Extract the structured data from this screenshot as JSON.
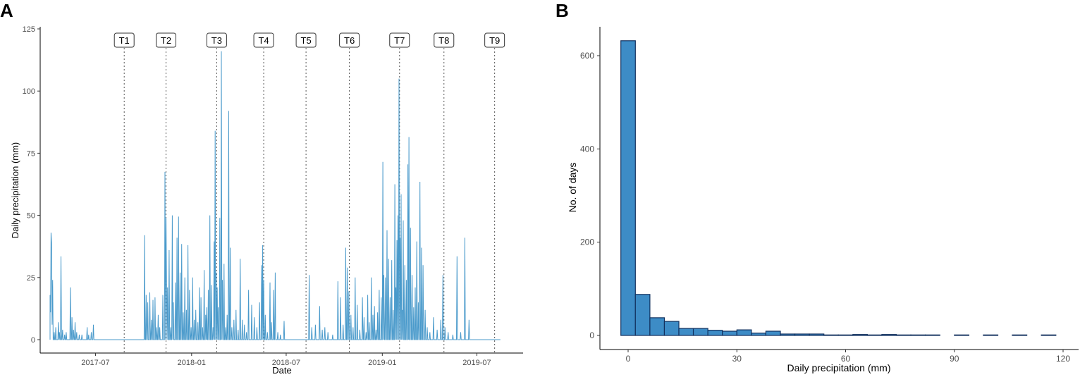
{
  "chart_data": [
    {
      "panel": "A",
      "type": "line",
      "title": "",
      "xlabel": "Date",
      "ylabel": "Daily precipitation (mm)",
      "ylim": [
        0,
        125
      ],
      "yticks": [
        0,
        25,
        50,
        75,
        100,
        125
      ],
      "xlim_days": [
        0,
        900
      ],
      "date_start": "2017-04-01",
      "xticks": [
        {
          "label": "2017-07",
          "day": 91
        },
        {
          "label": "2018-01",
          "day": 275
        },
        {
          "label": "2018-07",
          "day": 456
        },
        {
          "label": "2019-01",
          "day": 640
        },
        {
          "label": "2019-07",
          "day": 821
        }
      ],
      "line_color": "#4a9acb",
      "markers": [
        {
          "label": "T1",
          "day": 146
        },
        {
          "label": "T2",
          "day": 226
        },
        {
          "label": "T3",
          "day": 323
        },
        {
          "label": "T4",
          "day": 413
        },
        {
          "label": "T5",
          "day": 494
        },
        {
          "label": "T6",
          "day": 577
        },
        {
          "label": "T7",
          "day": 673
        },
        {
          "label": "T8",
          "day": 758
        },
        {
          "label": "T9",
          "day": 855
        }
      ],
      "spikes": [
        [
          4,
          18
        ],
        [
          5,
          11
        ],
        [
          6,
          43
        ],
        [
          7,
          39
        ],
        [
          8,
          6
        ],
        [
          9,
          24
        ],
        [
          12,
          3
        ],
        [
          15,
          5
        ],
        [
          20,
          7
        ],
        [
          22,
          3
        ],
        [
          25,
          33.5
        ],
        [
          28,
          4
        ],
        [
          32,
          2
        ],
        [
          35,
          3
        ],
        [
          43,
          21
        ],
        [
          46,
          9
        ],
        [
          49,
          4
        ],
        [
          52,
          7
        ],
        [
          55,
          3
        ],
        [
          60,
          2
        ],
        [
          65,
          2
        ],
        [
          75,
          5
        ],
        [
          78,
          2
        ],
        [
          83,
          3
        ],
        [
          87,
          6
        ],
        [
          185,
          42
        ],
        [
          188,
          18
        ],
        [
          191,
          15
        ],
        [
          195,
          19
        ],
        [
          198,
          8
        ],
        [
          201,
          16
        ],
        [
          205,
          17
        ],
        [
          208,
          5
        ],
        [
          211,
          10
        ],
        [
          214,
          5
        ],
        [
          220,
          18
        ],
        [
          224,
          67.5
        ],
        [
          226,
          49
        ],
        [
          227,
          24
        ],
        [
          229,
          21
        ],
        [
          232,
          36
        ],
        [
          235,
          5
        ],
        [
          238,
          50
        ],
        [
          240,
          15
        ],
        [
          244,
          23
        ],
        [
          247,
          41
        ],
        [
          250,
          49.5
        ],
        [
          253,
          27
        ],
        [
          256,
          38.5
        ],
        [
          259,
          11
        ],
        [
          262,
          25
        ],
        [
          265,
          12
        ],
        [
          268,
          38
        ],
        [
          271,
          20
        ],
        [
          274,
          5
        ],
        [
          277,
          25
        ],
        [
          280,
          8
        ],
        [
          283,
          12
        ],
        [
          287,
          7
        ],
        [
          290,
          21
        ],
        [
          293,
          17
        ],
        [
          296,
          5
        ],
        [
          299,
          28
        ],
        [
          302,
          10
        ],
        [
          304,
          13
        ],
        [
          307,
          20
        ],
        [
          310,
          50
        ],
        [
          313,
          22
        ],
        [
          316,
          5
        ],
        [
          318,
          39.5
        ],
        [
          320,
          84
        ],
        [
          322,
          27
        ],
        [
          324,
          21
        ],
        [
          326,
          13
        ],
        [
          329,
          49
        ],
        [
          332,
          116
        ],
        [
          334,
          24
        ],
        [
          337,
          30.5
        ],
        [
          340,
          5
        ],
        [
          343,
          10
        ],
        [
          346,
          92
        ],
        [
          349,
          37
        ],
        [
          352,
          5
        ],
        [
          356,
          8
        ],
        [
          360,
          12
        ],
        [
          364,
          4
        ],
        [
          368,
          32.5
        ],
        [
          372,
          8
        ],
        [
          376,
          6
        ],
        [
          380,
          3
        ],
        [
          384,
          20
        ],
        [
          390,
          14
        ],
        [
          395,
          9
        ],
        [
          400,
          5
        ],
        [
          405,
          15
        ],
        [
          409,
          30
        ],
        [
          411,
          38
        ],
        [
          413,
          24
        ],
        [
          416,
          10
        ],
        [
          420,
          3
        ],
        [
          425,
          23
        ],
        [
          428,
          7
        ],
        [
          432,
          20
        ],
        [
          435,
          27
        ],
        [
          440,
          3
        ],
        [
          445,
          2
        ],
        [
          452,
          7.5
        ],
        [
          500,
          26
        ],
        [
          505,
          5
        ],
        [
          512,
          6
        ],
        [
          520,
          13.5
        ],
        [
          525,
          4
        ],
        [
          530,
          5
        ],
        [
          536,
          3
        ],
        [
          545,
          2
        ],
        [
          555,
          23.5
        ],
        [
          560,
          17
        ],
        [
          565,
          6
        ],
        [
          570,
          37
        ],
        [
          573,
          29
        ],
        [
          576,
          19.5
        ],
        [
          580,
          10
        ],
        [
          584,
          5
        ],
        [
          588,
          25
        ],
        [
          592,
          14
        ],
        [
          597,
          4
        ],
        [
          602,
          17
        ],
        [
          605,
          9
        ],
        [
          609,
          3
        ],
        [
          612,
          18
        ],
        [
          615,
          7
        ],
        [
          619,
          25
        ],
        [
          622,
          10
        ],
        [
          625,
          13.5
        ],
        [
          628,
          4
        ],
        [
          631,
          11
        ],
        [
          634,
          20
        ],
        [
          638,
          17
        ],
        [
          641,
          71.5
        ],
        [
          643,
          26
        ],
        [
          646,
          25
        ],
        [
          649,
          44
        ],
        [
          652,
          32.5
        ],
        [
          655,
          17
        ],
        [
          658,
          32
        ],
        [
          661,
          12
        ],
        [
          664,
          62.5
        ],
        [
          666,
          21
        ],
        [
          668,
          40
        ],
        [
          670,
          50
        ],
        [
          672,
          105
        ],
        [
          674,
          41
        ],
        [
          676,
          58.5
        ],
        [
          678,
          12
        ],
        [
          680,
          48
        ],
        [
          683,
          30
        ],
        [
          686,
          24
        ],
        [
          689,
          70.5
        ],
        [
          691,
          81.5
        ],
        [
          694,
          45
        ],
        [
          697,
          26
        ],
        [
          700,
          13
        ],
        [
          703,
          21
        ],
        [
          706,
          39.5
        ],
        [
          709,
          15
        ],
        [
          712,
          63.5
        ],
        [
          715,
          37
        ],
        [
          718,
          30
        ],
        [
          722,
          12
        ],
        [
          726,
          5
        ],
        [
          731,
          3
        ],
        [
          738,
          9
        ],
        [
          745,
          4
        ],
        [
          752,
          8
        ],
        [
          756,
          26
        ],
        [
          760,
          5
        ],
        [
          766,
          3
        ],
        [
          775,
          2
        ],
        [
          783,
          33.5
        ],
        [
          790,
          3
        ],
        [
          798,
          41
        ],
        [
          806,
          8
        ]
      ]
    },
    {
      "panel": "B",
      "type": "bar",
      "title": "",
      "xlabel": "Daily precipitation (mm)",
      "ylabel": "No. of days",
      "xlim": [
        -6,
        120
      ],
      "ylim": [
        0,
        660
      ],
      "xticks": [
        0,
        30,
        60,
        90,
        120
      ],
      "yticks": [
        0,
        200,
        400,
        600
      ],
      "bin_width": 4,
      "bin_start": -2,
      "bar_fill": "#3d8cc6",
      "bar_stroke": "#11305e",
      "values": [
        632,
        88,
        38,
        30,
        15,
        15,
        11,
        9,
        12,
        5,
        9,
        3,
        3,
        3,
        1,
        1,
        2,
        1,
        2,
        1,
        1,
        1,
        0,
        1,
        0,
        1,
        0,
        1,
        0,
        1
      ]
    }
  ]
}
